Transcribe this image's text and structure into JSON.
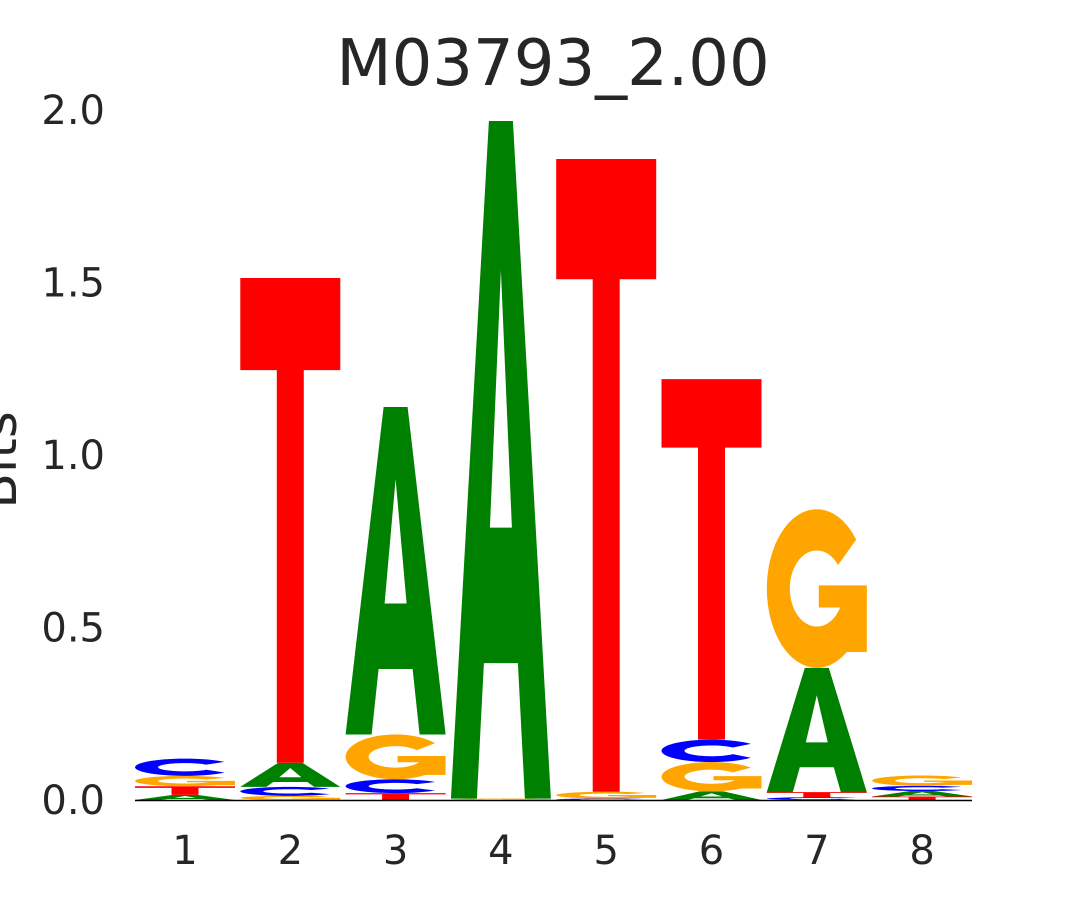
{
  "chart_data": {
    "type": "sequence-logo",
    "title": "M03793_2.00",
    "xlabel": "",
    "ylabel": "Bits",
    "ylim": [
      0,
      2.0
    ],
    "yticks": [
      "0.0",
      "0.5",
      "1.0",
      "1.5",
      "2.0"
    ],
    "yticks_values": [
      0,
      0.5,
      1.0,
      1.5,
      2.0
    ],
    "categories": [
      "1",
      "2",
      "3",
      "4",
      "5",
      "6",
      "7",
      "8"
    ],
    "colors": {
      "A": "#008000",
      "C": "#0000ff",
      "G": "#ffa500",
      "T": "#ff0000"
    },
    "positions": [
      [
        {
          "base": "A",
          "bits": 0.015
        },
        {
          "base": "T",
          "bits": 0.025
        },
        {
          "base": "G",
          "bits": 0.03
        },
        {
          "base": "C",
          "bits": 0.05
        }
      ],
      [
        {
          "base": "G",
          "bits": 0.012
        },
        {
          "base": "C",
          "bits": 0.026
        },
        {
          "base": "A",
          "bits": 0.07
        },
        {
          "base": "T",
          "bits": 1.405
        }
      ],
      [
        {
          "base": "T",
          "bits": 0.02
        },
        {
          "base": "C",
          "bits": 0.04
        },
        {
          "base": "G",
          "bits": 0.13
        },
        {
          "base": "A",
          "bits": 0.949
        }
      ],
      [
        {
          "base": "G",
          "bits": 0.004
        },
        {
          "base": "A",
          "bits": 1.964
        }
      ],
      [
        {
          "base": "C",
          "bits": 0.004
        },
        {
          "base": "G",
          "bits": 0.02
        },
        {
          "base": "T",
          "bits": 1.834
        }
      ],
      [
        {
          "base": "A",
          "bits": 0.025
        },
        {
          "base": "G",
          "bits": 0.085
        },
        {
          "base": "C",
          "bits": 0.065
        },
        {
          "base": "T",
          "bits": 1.045
        }
      ],
      [
        {
          "base": "C",
          "bits": 0.008
        },
        {
          "base": "T",
          "bits": 0.015
        },
        {
          "base": "A",
          "bits": 0.36
        },
        {
          "base": "G",
          "bits": 0.46
        }
      ],
      [
        {
          "base": "T",
          "bits": 0.01
        },
        {
          "base": "A",
          "bits": 0.016
        },
        {
          "base": "C",
          "bits": 0.015
        },
        {
          "base": "G",
          "bits": 0.03
        }
      ]
    ]
  }
}
